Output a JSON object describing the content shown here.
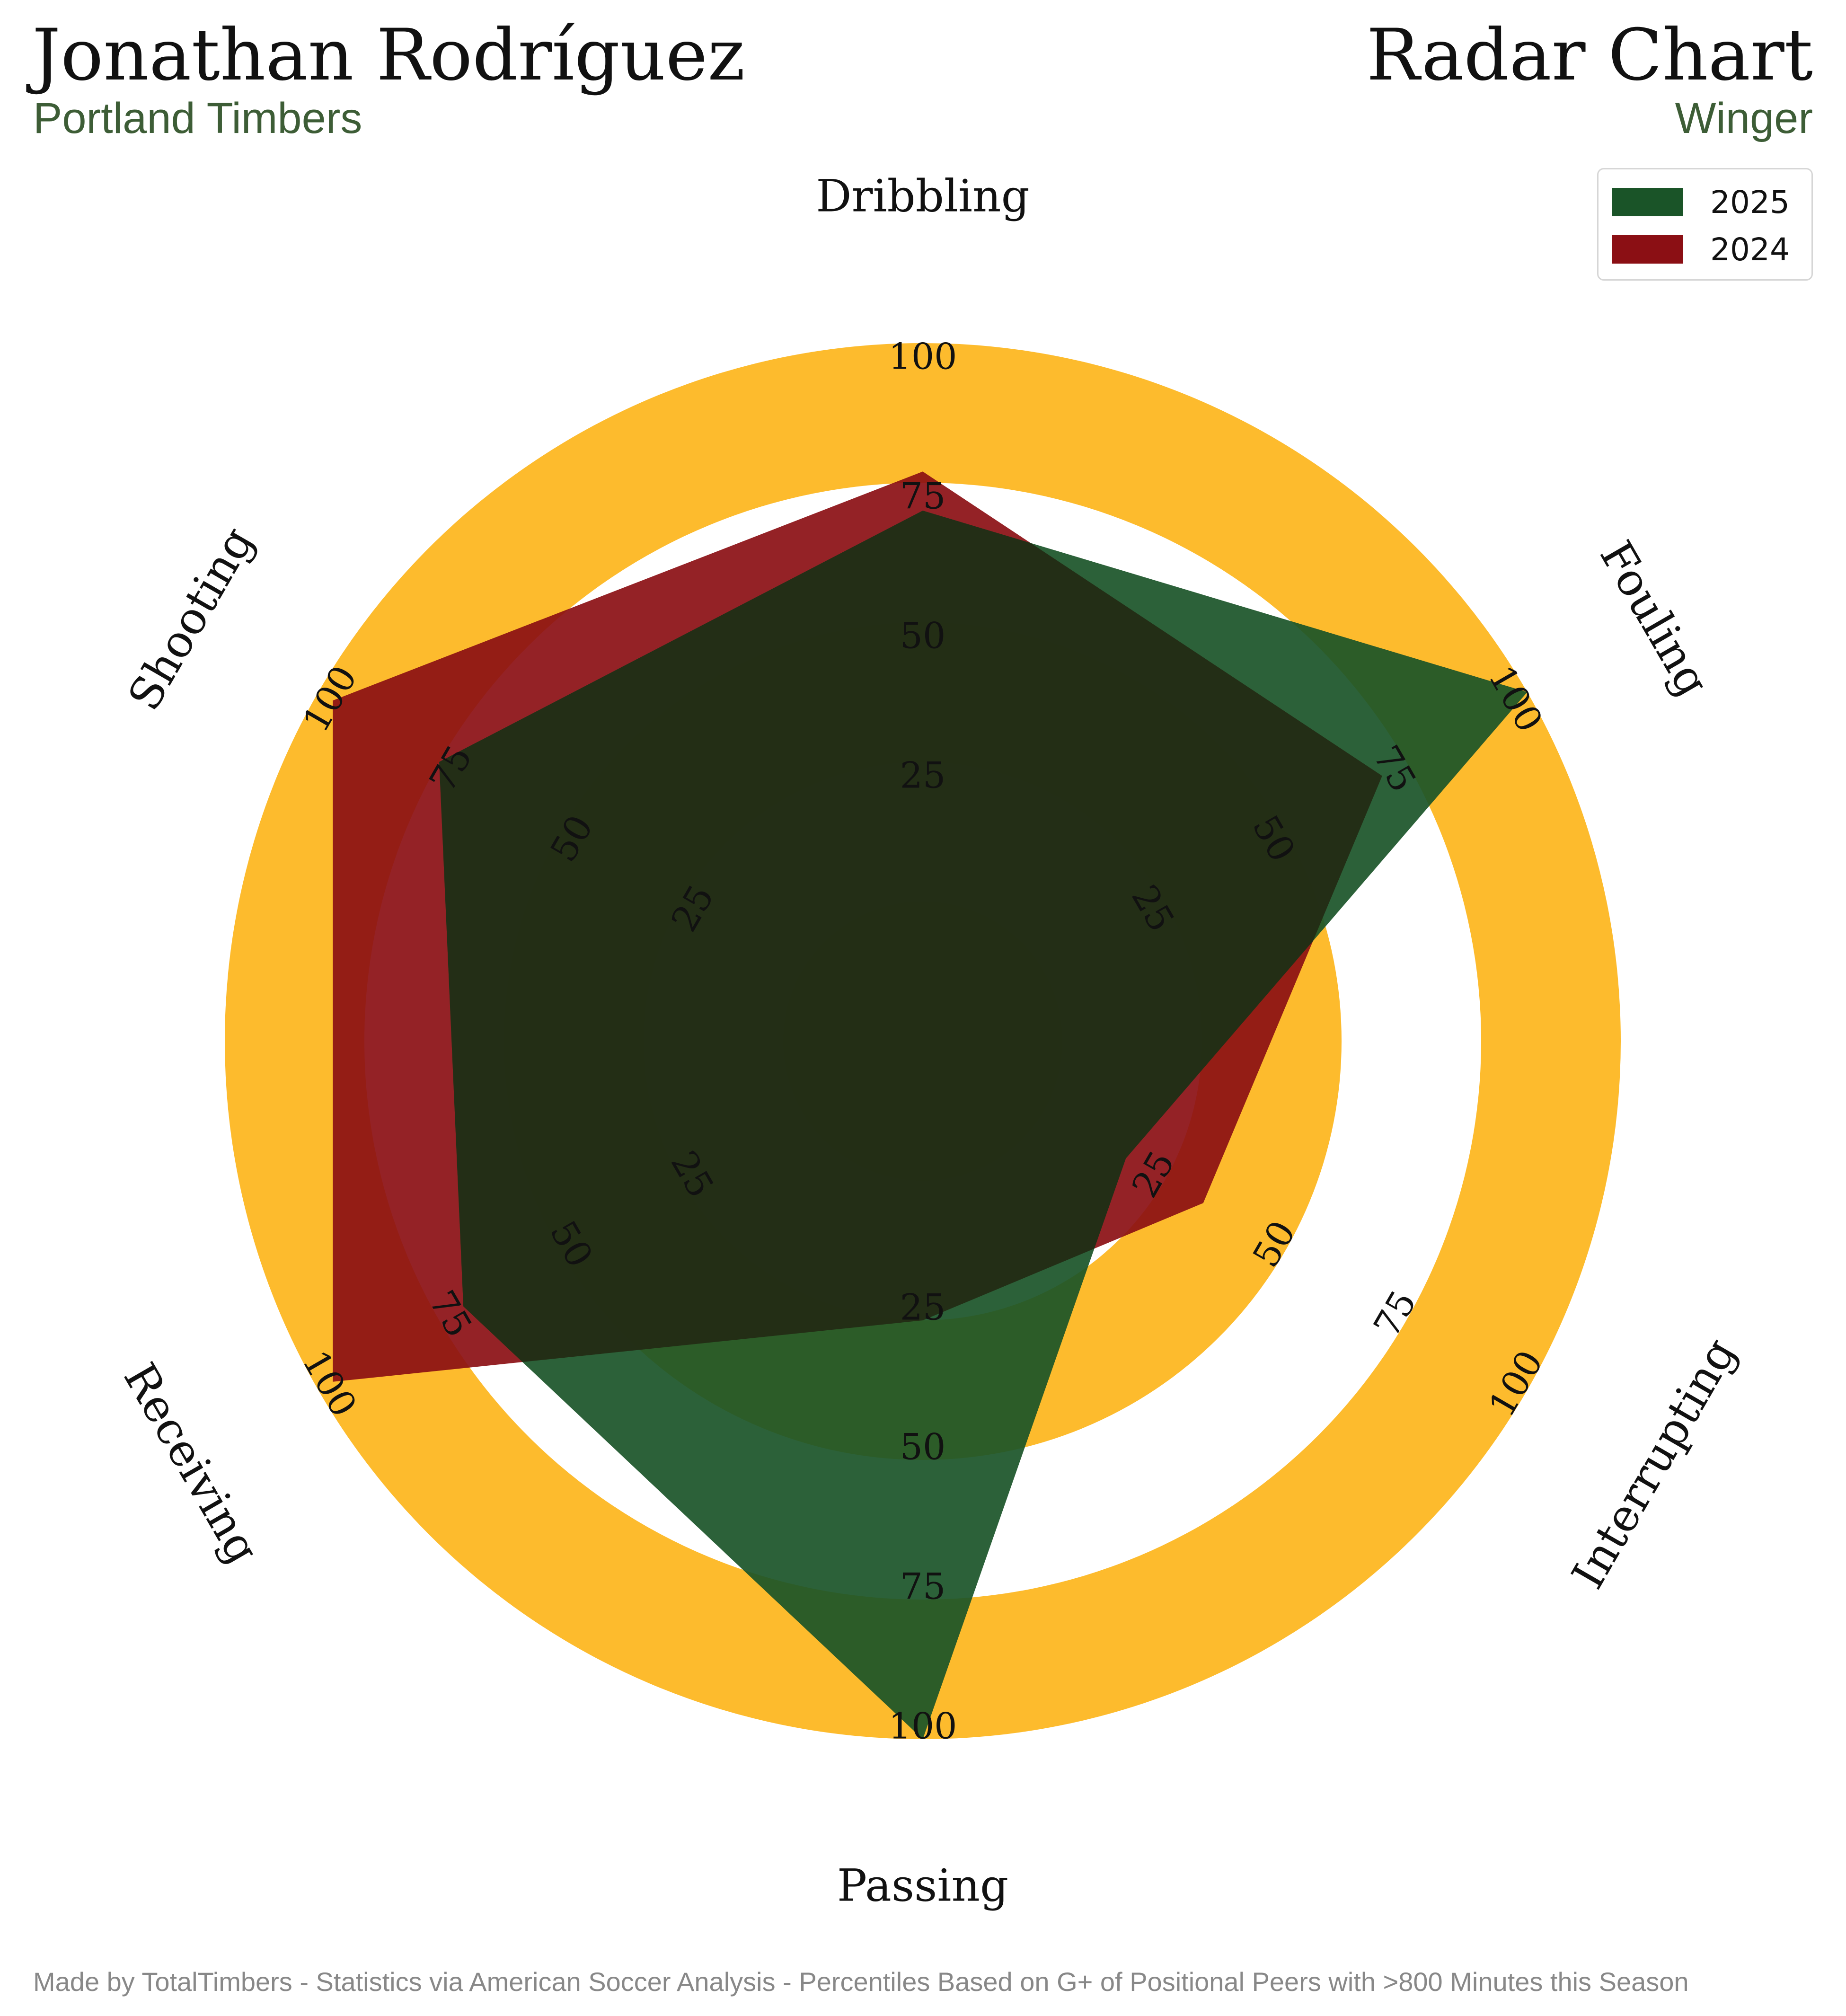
{
  "header": {
    "player": "Jonathan Rodríguez",
    "club": "Portland Timbers",
    "title": "Radar Chart",
    "position": "Winger"
  },
  "footer": {
    "text": "Made by TotalTimbers - Statistics via American Soccer Analysis - Percentiles Based on G+ of Positional Peers with >800 Minutes this Season"
  },
  "colors": {
    "ring_gold": "#fdbb2d",
    "ring_dark": "#3f4a1f",
    "series_2025": "#1a5428",
    "series_2024": "#8b0f14",
    "overlap": "#232a14"
  },
  "chart_data": {
    "type": "radar",
    "axes": [
      "Dribbling",
      "Fouling",
      "Interrupting",
      "Passing",
      "Receiving",
      "Shooting"
    ],
    "ticks": [
      25,
      50,
      75,
      100
    ],
    "range": [
      0,
      100
    ],
    "series": [
      {
        "name": "2025",
        "values": [
          70,
          100,
          17,
          100,
          70,
          75
        ]
      },
      {
        "name": "2024",
        "values": [
          77,
          70,
          33,
          25,
          97,
          97
        ]
      }
    ],
    "legend": "top-right"
  }
}
